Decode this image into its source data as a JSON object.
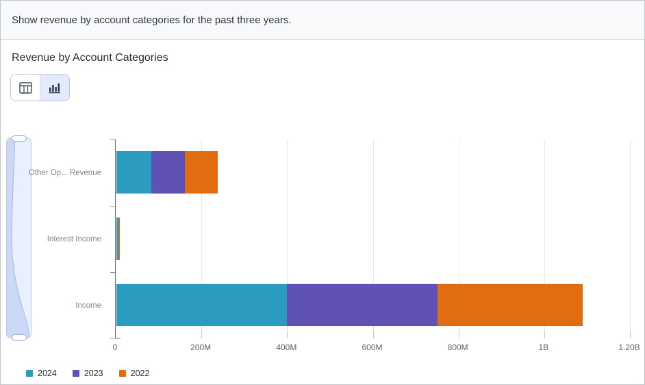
{
  "prompt": {
    "text": "Show revenue by account categories for the past three years."
  },
  "card": {
    "title": "Revenue by Account Categories"
  },
  "toolbar": {
    "table_view_icon": "table-icon",
    "chart_view_icon": "bar-chart-icon",
    "active_view": "chart"
  },
  "colors": {
    "teal_2024": "#2B9BC0",
    "purple_2023": "#6052B5",
    "orange_2022": "#E26D11",
    "toggle_active_bg": "#E4EAF9",
    "navigator_track": "#E9EFFC",
    "gridline": "#E7E7E7"
  },
  "chart_data": {
    "type": "bar",
    "orientation": "horizontal-stacked",
    "title": "Revenue by Account Categories",
    "categories": [
      "Other Op... Revenue",
      "Interest Income",
      "Income"
    ],
    "series": [
      {
        "name": "2024",
        "color": "#2B9BC0",
        "values": [
          82000000,
          4000000,
          398000000
        ]
      },
      {
        "name": "2023",
        "color": "#6052B5",
        "values": [
          78000000,
          1500000,
          352000000
        ]
      },
      {
        "name": "2022",
        "color": "#E26D11",
        "values": [
          77000000,
          2500000,
          338000000
        ]
      }
    ],
    "xlim": [
      0,
      1200000000
    ],
    "x_ticks": [
      {
        "value": 0,
        "label": "0"
      },
      {
        "value": 200000000,
        "label": "200M"
      },
      {
        "value": 400000000,
        "label": "400M"
      },
      {
        "value": 600000000,
        "label": "600M"
      },
      {
        "value": 800000000,
        "label": "800M"
      },
      {
        "value": 1000000000,
        "label": "1B"
      },
      {
        "value": 1200000000,
        "label": "1.20B"
      }
    ],
    "grid": true,
    "legend_position": "bottom-left"
  }
}
